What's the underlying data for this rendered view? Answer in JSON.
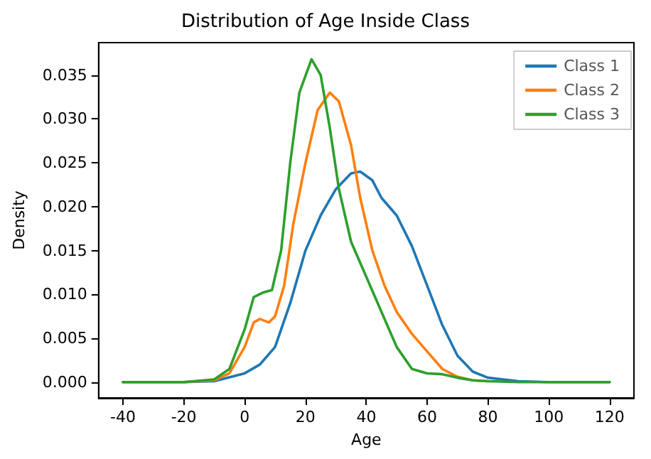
{
  "chart_data": {
    "type": "line",
    "title": "Distribution of Age Inside Class",
    "xlabel": "Age",
    "ylabel": "Density",
    "series": [
      {
        "name": "Class 1",
        "color": "#1f77b4",
        "x": [
          -40,
          -20,
          -10,
          0,
          5,
          10,
          15,
          20,
          25,
          30,
          35,
          38,
          42,
          45,
          50,
          55,
          60,
          65,
          70,
          75,
          80,
          90,
          100,
          120
        ],
        "values": [
          0,
          0,
          0.0001,
          0.001,
          0.002,
          0.004,
          0.009,
          0.015,
          0.019,
          0.022,
          0.0238,
          0.024,
          0.023,
          0.021,
          0.019,
          0.0155,
          0.011,
          0.0065,
          0.003,
          0.0012,
          0.0005,
          0.0001,
          0,
          0
        ]
      },
      {
        "name": "Class 2",
        "color": "#ff7f0e",
        "x": [
          -40,
          -20,
          -10,
          -5,
          0,
          3,
          5,
          8,
          10,
          13,
          16,
          20,
          24,
          28,
          31,
          35,
          38,
          42,
          46,
          50,
          55,
          60,
          65,
          70,
          75,
          80
        ],
        "values": [
          0,
          0,
          0.0002,
          0.001,
          0.004,
          0.0068,
          0.0072,
          0.0068,
          0.0075,
          0.011,
          0.018,
          0.025,
          0.031,
          0.033,
          0.032,
          0.027,
          0.021,
          0.015,
          0.011,
          0.008,
          0.0055,
          0.0035,
          0.0015,
          0.0006,
          0.0002,
          0.0001
        ]
      },
      {
        "name": "Class 3",
        "color": "#2ca02c",
        "x": [
          -40,
          -20,
          -10,
          -5,
          0,
          3,
          6,
          9,
          12,
          15,
          18,
          22,
          25,
          28,
          31,
          35,
          40,
          45,
          50,
          55,
          60,
          65,
          70,
          75,
          80,
          90,
          100,
          120
        ],
        "values": [
          0,
          0,
          0.0003,
          0.0015,
          0.006,
          0.0097,
          0.0102,
          0.0105,
          0.015,
          0.025,
          0.033,
          0.0368,
          0.035,
          0.029,
          0.022,
          0.016,
          0.012,
          0.008,
          0.004,
          0.0015,
          0.001,
          0.0009,
          0.0005,
          0.0002,
          0.0001,
          0,
          0,
          0
        ]
      }
    ],
    "xlim": [
      -48,
      128
    ],
    "xticks": [
      -40,
      -20,
      0,
      20,
      40,
      60,
      80,
      100,
      120
    ],
    "ylim": [
      -0.0018,
      0.0387
    ],
    "yticks": [
      {
        "value": 0,
        "label": "0.000"
      },
      {
        "value": 0.005,
        "label": "0.005"
      },
      {
        "value": 0.01,
        "label": "0.010"
      },
      {
        "value": 0.015,
        "label": "0.015"
      },
      {
        "value": 0.02,
        "label": "0.020"
      },
      {
        "value": 0.025,
        "label": "0.025"
      },
      {
        "value": 0.03,
        "label": "0.030"
      },
      {
        "value": 0.035,
        "label": "0.035"
      }
    ],
    "legend": "top right",
    "grid": false,
    "line_style": "solid",
    "marker": "none"
  }
}
